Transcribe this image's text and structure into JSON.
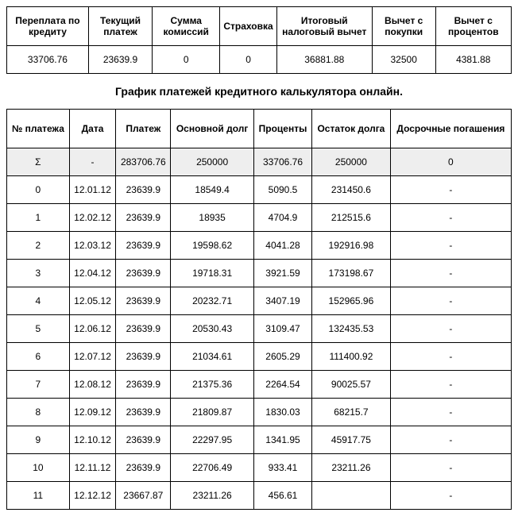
{
  "summary": {
    "headers": [
      "Переплата по кредиту",
      "Текущий платеж",
      "Сумма комиссий",
      "Страховка",
      "Итоговый налоговый вычет",
      "Вычет с покупки",
      "Вычет с процентов"
    ],
    "row": [
      "33706.76",
      "23639.9",
      "0",
      "0",
      "36881.88",
      "32500",
      "4381.88"
    ]
  },
  "title": "График платежей кредитного калькулятора онлайн.",
  "schedule": {
    "headers": [
      "№ платежа",
      "Дата",
      "Платеж",
      "Основной долг",
      "Проценты",
      "Остаток долга",
      "Досрочные погашения"
    ],
    "sigma": [
      "Σ",
      "-",
      "283706.76",
      "250000",
      "33706.76",
      "250000",
      "0"
    ],
    "rows": [
      [
        "0",
        "12.01.12",
        "23639.9",
        "18549.4",
        "5090.5",
        "231450.6",
        "-"
      ],
      [
        "1",
        "12.02.12",
        "23639.9",
        "18935",
        "4704.9",
        "212515.6",
        "-"
      ],
      [
        "2",
        "12.03.12",
        "23639.9",
        "19598.62",
        "4041.28",
        "192916.98",
        "-"
      ],
      [
        "3",
        "12.04.12",
        "23639.9",
        "19718.31",
        "3921.59",
        "173198.67",
        "-"
      ],
      [
        "4",
        "12.05.12",
        "23639.9",
        "20232.71",
        "3407.19",
        "152965.96",
        "-"
      ],
      [
        "5",
        "12.06.12",
        "23639.9",
        "20530.43",
        "3109.47",
        "132435.53",
        "-"
      ],
      [
        "6",
        "12.07.12",
        "23639.9",
        "21034.61",
        "2605.29",
        "111400.92",
        "-"
      ],
      [
        "7",
        "12.08.12",
        "23639.9",
        "21375.36",
        "2264.54",
        "90025.57",
        "-"
      ],
      [
        "8",
        "12.09.12",
        "23639.9",
        "21809.87",
        "1830.03",
        "68215.7",
        "-"
      ],
      [
        "9",
        "12.10.12",
        "23639.9",
        "22297.95",
        "1341.95",
        "45917.75",
        "-"
      ],
      [
        "10",
        "12.11.12",
        "23639.9",
        "22706.49",
        "933.41",
        "23211.26",
        "-"
      ],
      [
        "11",
        "12.12.12",
        "23667.87",
        "23211.26",
        "456.61",
        "",
        "-"
      ]
    ]
  }
}
